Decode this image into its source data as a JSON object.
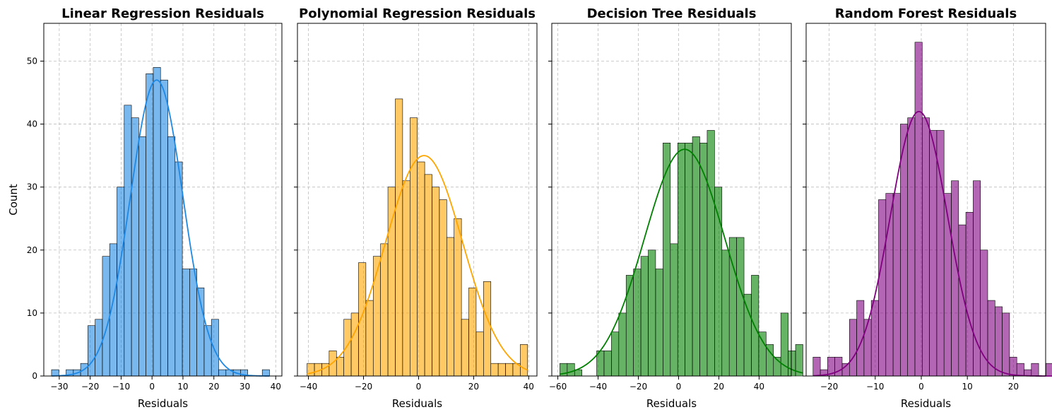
{
  "chart_data": [
    {
      "type": "bar",
      "title": "Linear Regression Residuals",
      "xlabel": "Residuals",
      "ylabel": "Count",
      "color": "#1e88e5",
      "xlim": [
        -35,
        42
      ],
      "ylim": [
        0,
        56
      ],
      "xticks": [
        -30,
        -20,
        -10,
        0,
        10,
        20,
        30,
        40
      ],
      "yticks": [
        0,
        10,
        20,
        30,
        40,
        50
      ],
      "grid": true,
      "bin_start": -32.5,
      "bin_width": 2.35,
      "values": [
        1,
        0,
        1,
        1,
        2,
        8,
        9,
        19,
        21,
        30,
        43,
        41,
        38,
        48,
        49,
        47,
        38,
        34,
        17,
        17,
        14,
        8,
        9,
        1,
        1,
        1,
        1,
        0,
        0,
        1
      ],
      "kde_peak": 47,
      "kde_center": 1.5,
      "kde_sd": 8.5
    },
    {
      "type": "bar",
      "title": "Polynomial Regression Residuals",
      "xlabel": "Residuals",
      "ylabel": "",
      "color": "#ffa500",
      "xlim": [
        -44,
        43
      ],
      "ylim": [
        0,
        56
      ],
      "xticks": [
        -40,
        -20,
        0,
        20,
        40
      ],
      "yticks": [
        0,
        10,
        20,
        30,
        40,
        50
      ],
      "grid": true,
      "bin_start": -40.5,
      "bin_width": 2.67,
      "values": [
        2,
        2,
        2,
        4,
        3,
        9,
        10,
        18,
        12,
        19,
        21,
        30,
        44,
        31,
        41,
        34,
        32,
        30,
        28,
        22,
        25,
        9,
        14,
        7,
        15,
        2,
        2,
        2,
        2,
        5
      ],
      "kde_peak": 35,
      "kde_center": 2,
      "kde_sd": 14
    },
    {
      "type": "bar",
      "title": "Decision Tree Residuals",
      "xlabel": "Residuals",
      "ylabel": "",
      "color": "#008000",
      "xlim": [
        -63,
        56
      ],
      "ylim": [
        0,
        56
      ],
      "xticks": [
        -60,
        -40,
        -20,
        0,
        20,
        40
      ],
      "yticks": [
        0,
        10,
        20,
        30,
        40,
        50
      ],
      "grid": true,
      "bin_start": -59,
      "bin_width": 3.66,
      "values": [
        2,
        2,
        1,
        0,
        0,
        4,
        4,
        7,
        10,
        16,
        17,
        19,
        20,
        17,
        37,
        21,
        37,
        37,
        38,
        37,
        39,
        30,
        20,
        22,
        22,
        13,
        16,
        7,
        5,
        3,
        10,
        4,
        5
      ],
      "kde_peak": 36,
      "kde_center": 3,
      "kde_sd": 20
    },
    {
      "type": "bar",
      "title": "Random Forest Residuals",
      "xlabel": "Residuals",
      "ylabel": "",
      "color": "#800080",
      "xlim": [
        -25,
        27
      ],
      "ylim": [
        0,
        56
      ],
      "xticks": [
        -20,
        -10,
        0,
        10,
        20
      ],
      "yticks": [
        0,
        10,
        20,
        30,
        40,
        50
      ],
      "grid": true,
      "bin_start": -23.5,
      "bin_width": 1.58,
      "values": [
        3,
        1,
        3,
        3,
        2,
        9,
        12,
        9,
        12,
        28,
        29,
        29,
        40,
        41,
        53,
        41,
        39,
        39,
        29,
        31,
        24,
        26,
        31,
        20,
        12,
        11,
        10,
        3,
        2,
        1,
        2,
        0,
        2
      ],
      "kde_peak": 42,
      "kde_center": -0.5,
      "kde_sd": 6.2
    }
  ]
}
